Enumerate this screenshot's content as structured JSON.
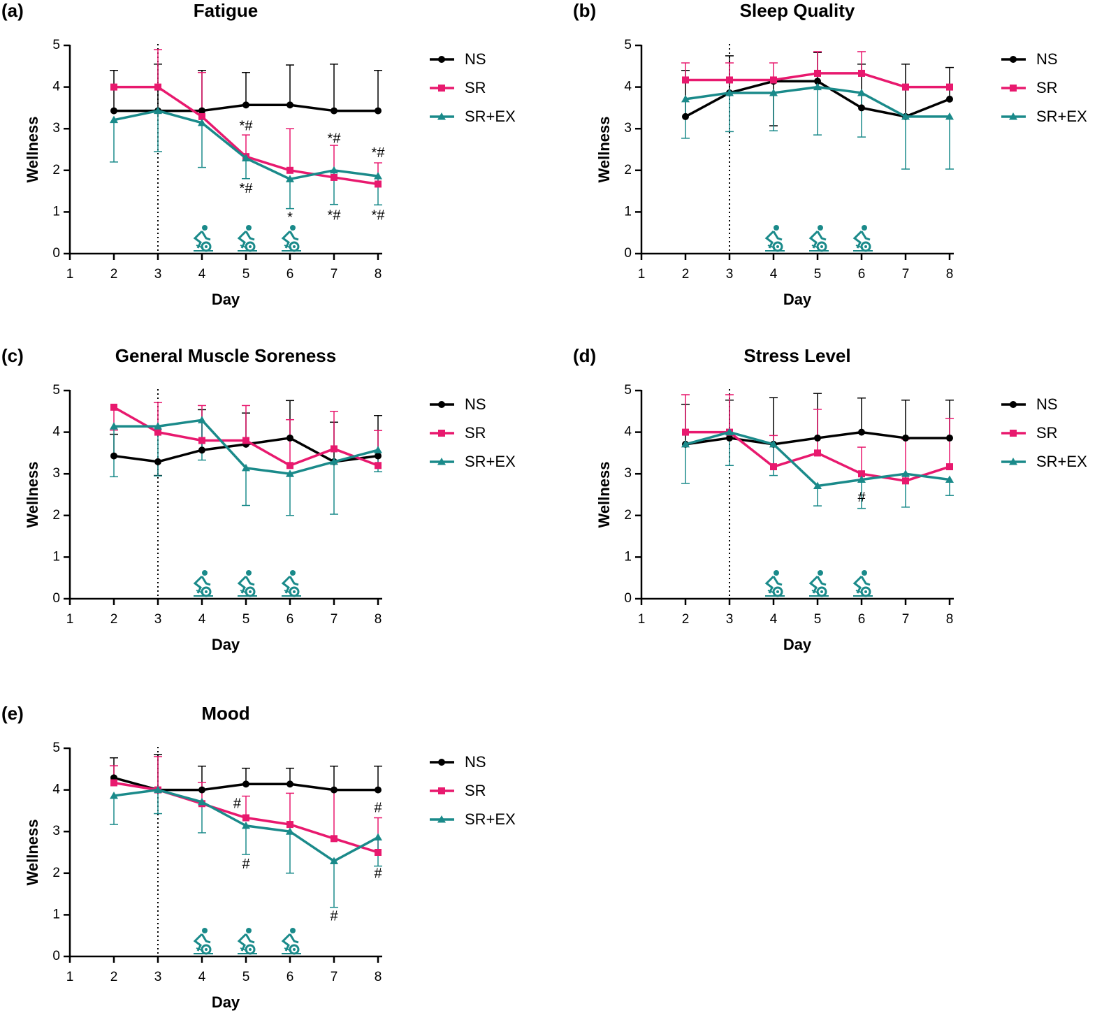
{
  "chart_data": [
    {
      "type": "line",
      "panel": "(a)",
      "title": "Fatigue",
      "xlabel": "Day",
      "ylabel": "Wellness",
      "x": [
        2,
        3,
        4,
        5,
        6,
        7,
        8
      ],
      "xlim": [
        1,
        8
      ],
      "xticks": [
        1,
        2,
        3,
        4,
        5,
        6,
        7,
        8
      ],
      "ylim": [
        0,
        5
      ],
      "yticks": [
        0,
        1,
        2,
        3,
        4,
        5
      ],
      "vline_x": 3,
      "exercise_days": [
        4,
        5,
        6
      ],
      "series": [
        {
          "name": "NS",
          "color": "#000000",
          "marker": "circle",
          "values": [
            3.43,
            3.43,
            3.43,
            3.57,
            3.57,
            3.43,
            3.43
          ],
          "err_up": [
            0.97,
            1.12,
            0.97,
            0.78,
            0.96,
            1.12,
            0.97
          ],
          "err_down": [
            null,
            null,
            null,
            null,
            null,
            null,
            null
          ]
        },
        {
          "name": "SR",
          "color": "#e8196e",
          "marker": "square",
          "values": [
            4.0,
            4.0,
            3.29,
            2.33,
            2.0,
            1.83,
            1.67
          ],
          "err_up": [
            null,
            0.9,
            1.06,
            0.52,
            1.0,
            0.77,
            0.51
          ],
          "err_down": [
            null,
            null,
            null,
            null,
            null,
            null,
            null
          ]
        },
        {
          "name": "SR+EX",
          "color": "#1a8a8a",
          "marker": "triangle",
          "values": [
            3.21,
            3.43,
            3.14,
            2.29,
            1.79,
            2.0,
            1.86
          ],
          "err_up": [
            null,
            null,
            null,
            null,
            null,
            null,
            null
          ],
          "err_down": [
            1.01,
            0.98,
            1.07,
            0.49,
            0.71,
            0.82,
            0.69
          ]
        }
      ],
      "annotations": [
        {
          "text": "*#",
          "x": 5,
          "y": 3.05
        },
        {
          "text": "*#",
          "x": 5,
          "y": 1.55
        },
        {
          "text": "*",
          "x": 6,
          "y": 0.85
        },
        {
          "text": "*#",
          "x": 7,
          "y": 2.75
        },
        {
          "text": "*#",
          "x": 7,
          "y": 0.9
        },
        {
          "text": "*#",
          "x": 8,
          "y": 2.4
        },
        {
          "text": "*#",
          "x": 8,
          "y": 0.9
        }
      ]
    },
    {
      "type": "line",
      "panel": "(b)",
      "title": "Sleep Quality",
      "xlabel": "Day",
      "ylabel": "Wellness",
      "x": [
        2,
        3,
        4,
        5,
        6,
        7,
        8
      ],
      "xlim": [
        1,
        8
      ],
      "xticks": [
        1,
        2,
        3,
        4,
        5,
        6,
        7,
        8
      ],
      "ylim": [
        0,
        5
      ],
      "yticks": [
        0,
        1,
        2,
        3,
        4,
        5
      ],
      "vline_x": 3,
      "exercise_days": [
        4,
        5,
        6
      ],
      "series": [
        {
          "name": "NS",
          "color": "#000000",
          "marker": "circle",
          "values": [
            3.29,
            3.86,
            4.14,
            4.14,
            3.5,
            3.29,
            3.71
          ],
          "err_up": [
            1.11,
            0.89,
            null,
            0.69,
            1.05,
            1.26,
            0.76
          ],
          "err_down": [
            null,
            null,
            1.07,
            null,
            null,
            null,
            null
          ]
        },
        {
          "name": "SR",
          "color": "#e8196e",
          "marker": "square",
          "values": [
            4.17,
            4.17,
            4.17,
            4.33,
            4.33,
            4.0,
            4.0
          ],
          "err_up": [
            0.41,
            0.41,
            0.41,
            0.52,
            0.52,
            null,
            null
          ],
          "err_down": [
            null,
            null,
            null,
            null,
            null,
            null,
            null
          ]
        },
        {
          "name": "SR+EX",
          "color": "#1a8a8a",
          "marker": "triangle",
          "values": [
            3.71,
            3.86,
            3.86,
            4.0,
            3.86,
            3.29,
            3.29
          ],
          "err_up": [
            null,
            null,
            null,
            null,
            null,
            null,
            null
          ],
          "err_down": [
            0.94,
            0.93,
            0.91,
            1.15,
            1.06,
            1.26,
            1.26
          ]
        }
      ],
      "annotations": []
    },
    {
      "type": "line",
      "panel": "(c)",
      "title": "General Muscle Soreness",
      "xlabel": "Day",
      "ylabel": "Wellness",
      "x": [
        2,
        3,
        4,
        5,
        6,
        7,
        8
      ],
      "xlim": [
        1,
        8
      ],
      "xticks": [
        1,
        2,
        3,
        4,
        5,
        6,
        7,
        8
      ],
      "ylim": [
        0,
        5
      ],
      "yticks": [
        0,
        1,
        2,
        3,
        4,
        5
      ],
      "vline_x": 3,
      "exercise_days": [
        4,
        5,
        6
      ],
      "series": [
        {
          "name": "NS",
          "color": "#000000",
          "marker": "circle",
          "values": [
            3.43,
            3.29,
            3.57,
            3.71,
            3.86,
            3.29,
            3.43
          ],
          "err_up": [
            0.52,
            null,
            0.97,
            0.75,
            0.9,
            0.95,
            0.97
          ],
          "err_down": [
            null,
            0.33,
            null,
            null,
            null,
            null,
            null
          ]
        },
        {
          "name": "SR",
          "color": "#e8196e",
          "marker": "square",
          "values": [
            4.6,
            4.0,
            3.8,
            3.8,
            3.2,
            3.6,
            3.2
          ],
          "err_up": [
            null,
            0.71,
            0.84,
            0.84,
            1.1,
            0.9,
            0.84
          ],
          "err_down": [
            0.55,
            null,
            null,
            null,
            null,
            null,
            null
          ]
        },
        {
          "name": "SR+EX",
          "color": "#1a8a8a",
          "marker": "triangle",
          "values": [
            4.14,
            4.14,
            4.29,
            3.14,
            3.0,
            3.29,
            3.57
          ],
          "err_up": [
            null,
            null,
            null,
            null,
            null,
            null,
            null
          ],
          "err_down": [
            1.21,
            1.19,
            0.96,
            0.9,
            1.0,
            1.26,
            0.52
          ]
        }
      ],
      "annotations": []
    },
    {
      "type": "line",
      "panel": "(d)",
      "title": "Stress Level",
      "xlabel": "Day",
      "ylabel": "Wellness",
      "x": [
        2,
        3,
        4,
        5,
        6,
        7,
        8
      ],
      "xlim": [
        1,
        8
      ],
      "xticks": [
        1,
        2,
        3,
        4,
        5,
        6,
        7,
        8
      ],
      "ylim": [
        0,
        5
      ],
      "yticks": [
        0,
        1,
        2,
        3,
        4,
        5
      ],
      "vline_x": 3,
      "exercise_days": [
        4,
        5,
        6
      ],
      "series": [
        {
          "name": "NS",
          "color": "#000000",
          "marker": "circle",
          "values": [
            3.71,
            3.86,
            3.71,
            3.86,
            4.0,
            3.86,
            3.86
          ],
          "err_up": [
            0.96,
            0.91,
            1.12,
            1.07,
            0.82,
            0.91,
            0.91
          ],
          "err_down": [
            null,
            null,
            null,
            null,
            null,
            null,
            null
          ]
        },
        {
          "name": "SR",
          "color": "#e8196e",
          "marker": "square",
          "values": [
            4.0,
            4.0,
            3.17,
            3.5,
            3.0,
            2.83,
            3.17
          ],
          "err_up": [
            0.9,
            0.9,
            0.75,
            1.05,
            0.64,
            1.0,
            1.16
          ],
          "err_down": [
            null,
            null,
            null,
            null,
            null,
            null,
            null
          ]
        },
        {
          "name": "SR+EX",
          "color": "#1a8a8a",
          "marker": "triangle",
          "values": [
            3.71,
            4.0,
            3.71,
            2.71,
            2.86,
            3.0,
            2.86
          ],
          "err_up": [
            null,
            null,
            null,
            null,
            null,
            null,
            null
          ],
          "err_down": [
            0.94,
            0.8,
            0.75,
            0.48,
            0.69,
            0.8,
            0.38
          ]
        }
      ],
      "annotations": [
        {
          "text": "#",
          "x": 6,
          "y": 2.42
        }
      ]
    },
    {
      "type": "line",
      "panel": "(e)",
      "title": "Mood",
      "xlabel": "Day",
      "ylabel": "Wellness",
      "x": [
        2,
        3,
        4,
        5,
        6,
        7,
        8
      ],
      "xlim": [
        1,
        8
      ],
      "xticks": [
        1,
        2,
        3,
        4,
        5,
        6,
        7,
        8
      ],
      "ylim": [
        0,
        5
      ],
      "yticks": [
        0,
        1,
        2,
        3,
        4,
        5
      ],
      "vline_x": 3,
      "exercise_days": [
        4,
        5,
        6
      ],
      "series": [
        {
          "name": "NS",
          "color": "#000000",
          "marker": "circle",
          "values": [
            4.29,
            4.0,
            4.0,
            4.14,
            4.14,
            4.0,
            4.0
          ],
          "err_up": [
            0.48,
            0.85,
            0.57,
            0.38,
            0.38,
            0.57,
            0.57
          ],
          "err_down": [
            null,
            null,
            null,
            null,
            null,
            null,
            null
          ]
        },
        {
          "name": "SR",
          "color": "#e8196e",
          "marker": "square",
          "values": [
            4.17,
            4.0,
            3.67,
            3.33,
            3.17,
            2.83,
            2.5
          ],
          "err_up": [
            0.41,
            0.8,
            0.51,
            0.52,
            0.75,
            1.17,
            0.83
          ],
          "err_down": [
            null,
            null,
            null,
            null,
            null,
            null,
            null
          ]
        },
        {
          "name": "SR+EX",
          "color": "#1a8a8a",
          "marker": "triangle",
          "values": [
            3.86,
            4.0,
            3.71,
            3.14,
            3.0,
            2.29,
            2.86
          ],
          "err_up": [
            null,
            null,
            null,
            null,
            null,
            null,
            null
          ],
          "err_down": [
            0.69,
            0.57,
            0.74,
            0.69,
            1.0,
            1.11,
            0.69
          ]
        }
      ],
      "annotations": [
        {
          "text": "#",
          "x": 4.8,
          "y": 3.65
        },
        {
          "text": "#",
          "x": 5,
          "y": 2.2
        },
        {
          "text": "#",
          "x": 7,
          "y": 0.95
        },
        {
          "text": "#",
          "x": 8,
          "y": 3.55
        },
        {
          "text": "#",
          "x": 8,
          "y": 1.98
        }
      ]
    }
  ]
}
